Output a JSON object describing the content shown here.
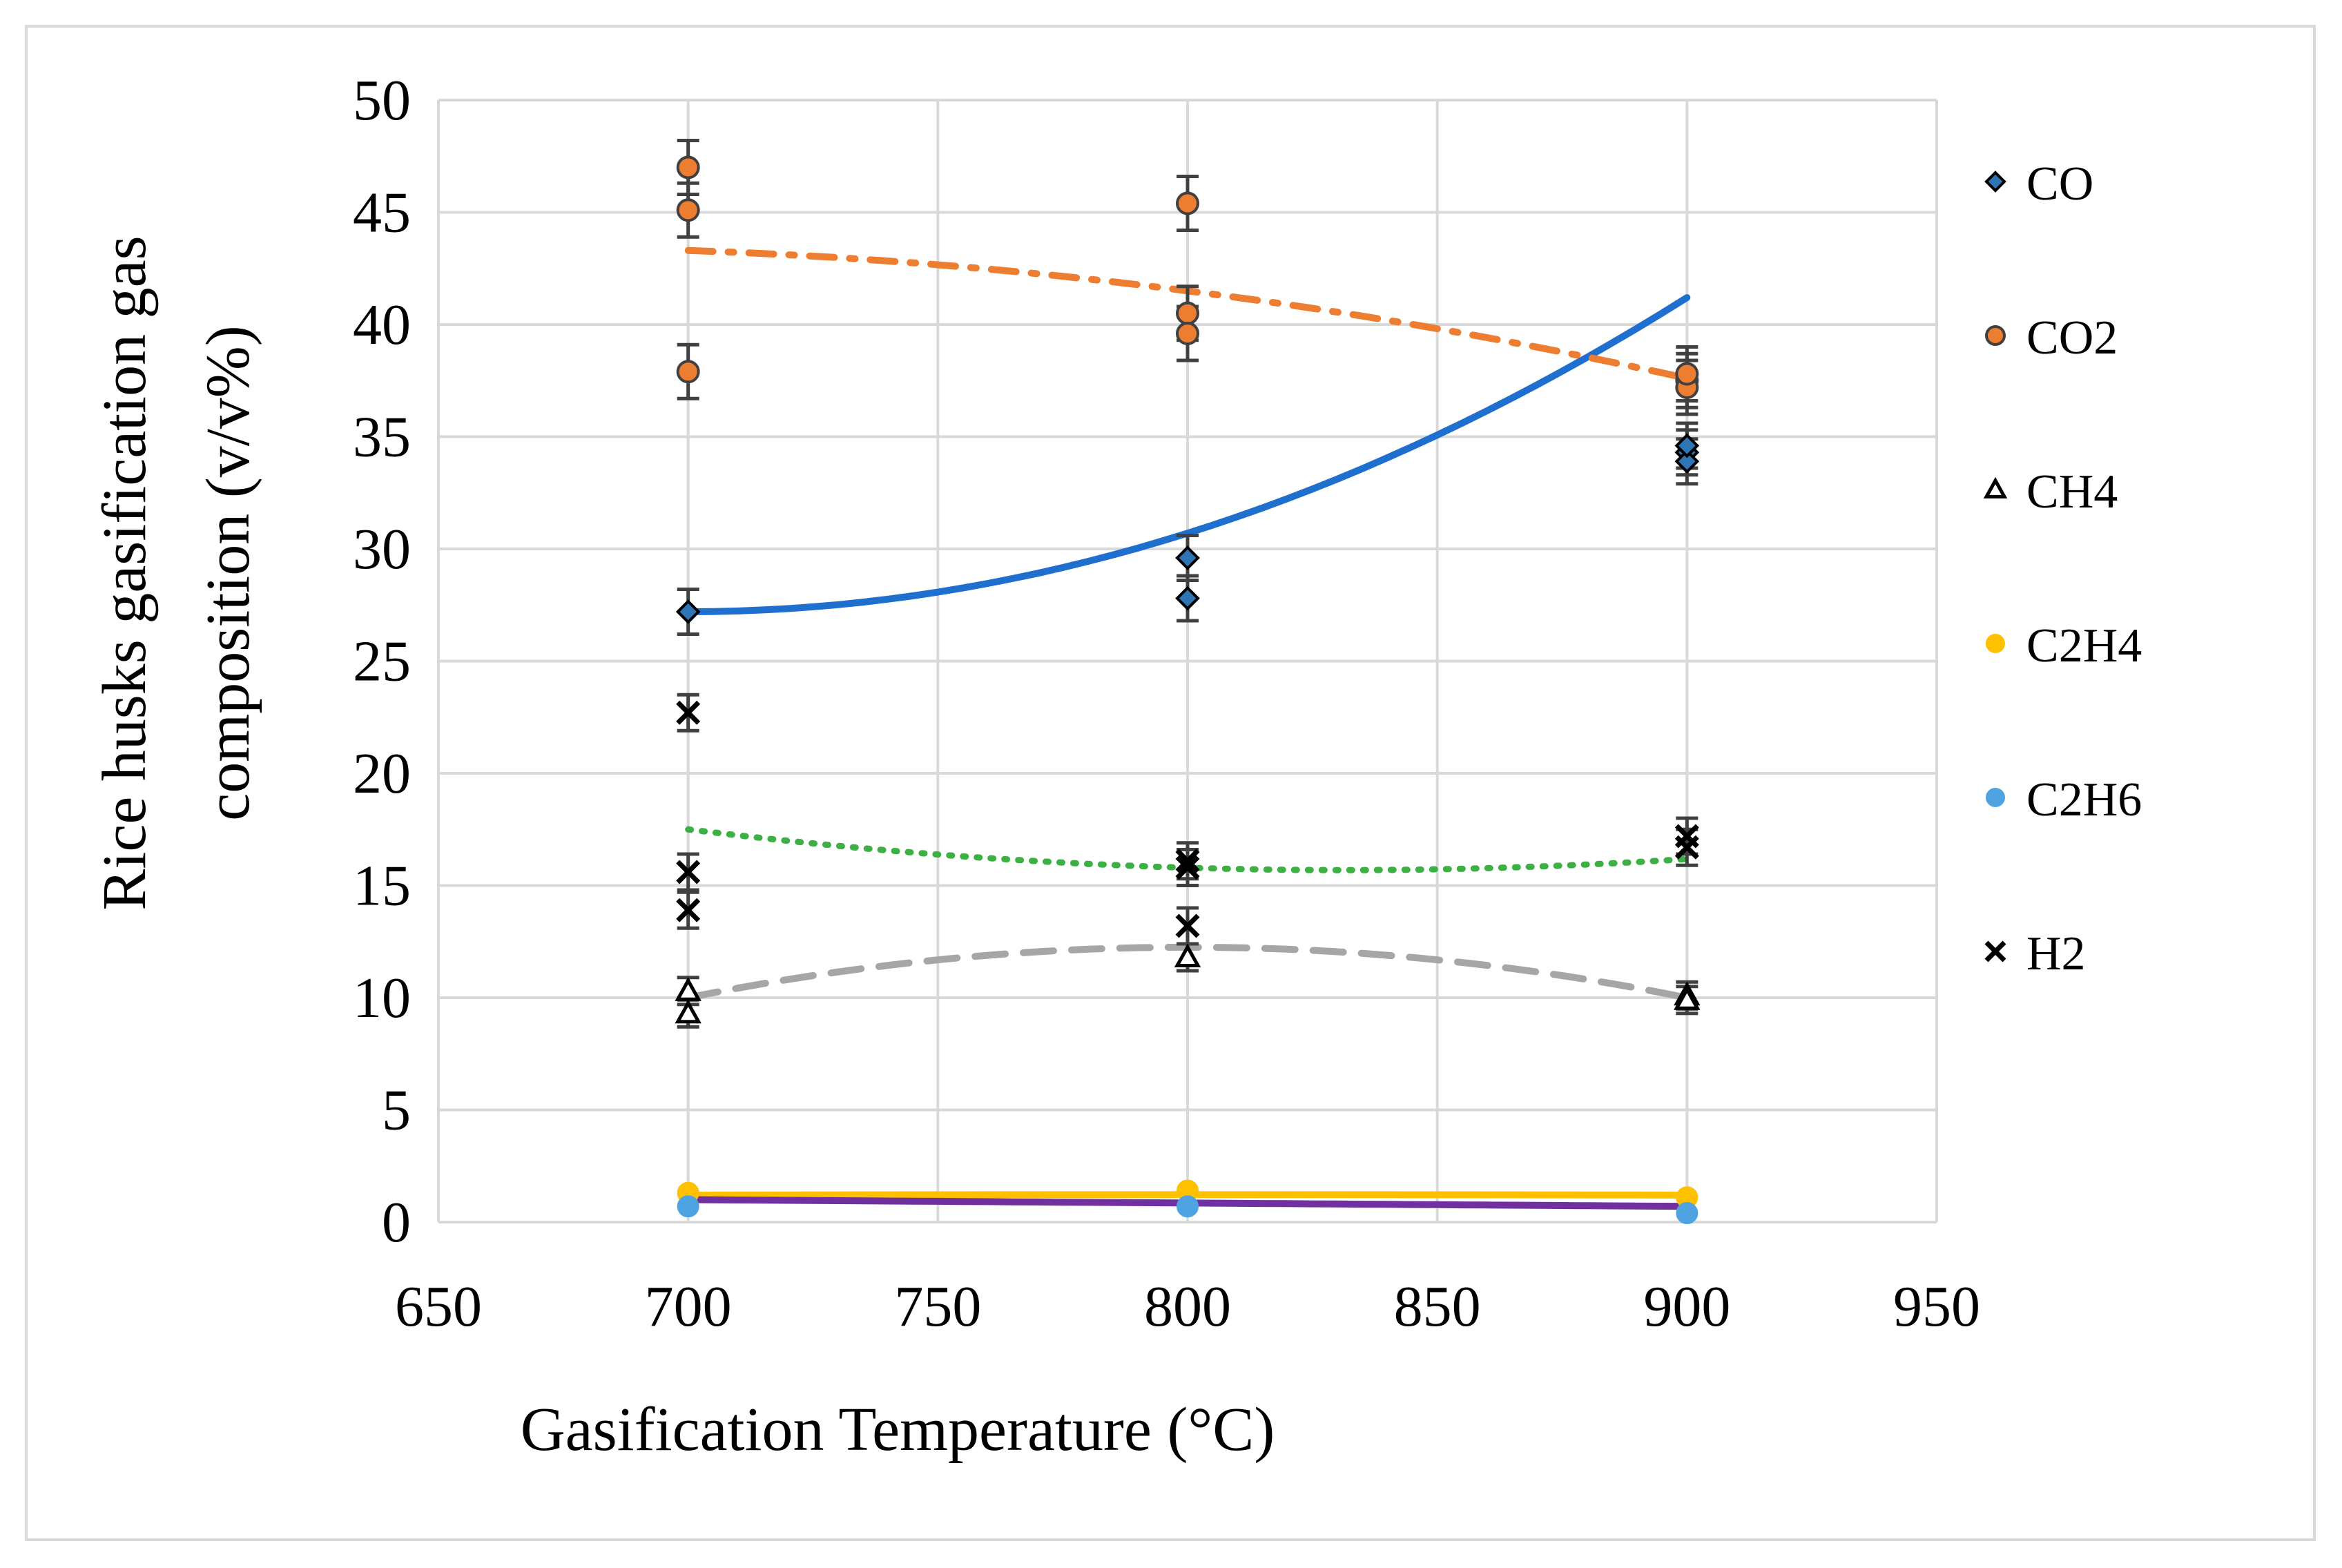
{
  "chart_data": {
    "type": "scatter",
    "title": "",
    "xlabel": "Gasification Temperature (°C)",
    "ylabel_line1": "Rice husks gasification gas",
    "ylabel_line2": "composition (v/v%)",
    "xlim": [
      650,
      950
    ],
    "ylim": [
      0,
      50
    ],
    "xticks": [
      650,
      700,
      750,
      800,
      850,
      900,
      950
    ],
    "yticks": [
      0,
      5,
      10,
      15,
      20,
      25,
      30,
      35,
      40,
      45,
      50
    ],
    "grid": true,
    "legend_position": "right",
    "series": [
      {
        "name": "CO",
        "marker": "diamond",
        "color": "#2e75b6",
        "points": [
          [
            700,
            27.2
          ],
          [
            800,
            29.6
          ],
          [
            800,
            27.8
          ],
          [
            900,
            34.3
          ],
          [
            900,
            33.9
          ],
          [
            900,
            34.6
          ]
        ],
        "error": 1.0,
        "trend": {
          "style": "solid",
          "color": "#1f6fce",
          "coeffs": [
            27.2,
            0.0,
            0.00035
          ]
        }
      },
      {
        "name": "CO2",
        "marker": "circle",
        "color": "#ed7d31",
        "points": [
          [
            700,
            47.0
          ],
          [
            700,
            45.1
          ],
          [
            700,
            37.9
          ],
          [
            800,
            45.4
          ],
          [
            800,
            40.5
          ],
          [
            800,
            39.6
          ],
          [
            900,
            37.5
          ],
          [
            900,
            37.2
          ],
          [
            900,
            37.8
          ]
        ],
        "error": 1.2,
        "trend": {
          "style": "dash-dot",
          "color": "#ed7d31",
          "coeffs": [
            43.3,
            -0.0075,
            -0.000105
          ]
        }
      },
      {
        "name": "CH4",
        "marker": "triangle",
        "color": "#7f7f7f",
        "points": [
          [
            700,
            10.3
          ],
          [
            700,
            9.3
          ],
          [
            800,
            11.8
          ],
          [
            900,
            10.1
          ],
          [
            900,
            9.9
          ]
        ],
        "error": 0.6,
        "trend": {
          "style": "dashed",
          "color": "#a6a6a6",
          "coeffs": [
            10.0,
            0.045,
            -0.000225
          ]
        }
      },
      {
        "name": "C2H4",
        "marker": "circle",
        "color": "#ffc000",
        "points": [
          [
            700,
            1.3
          ],
          [
            800,
            1.4
          ],
          [
            900,
            1.1
          ]
        ],
        "error": 0,
        "trend": {
          "style": "solid",
          "color": "#ffc000",
          "coeffs": [
            1.2,
            0.0005,
            -2.5e-06
          ]
        }
      },
      {
        "name": "C2H6",
        "marker": "circle",
        "color": "#4fa3e0",
        "points": [
          [
            700,
            0.7
          ],
          [
            800,
            0.7
          ],
          [
            900,
            0.4
          ]
        ],
        "error": 0,
        "trend": {
          "style": "solid",
          "color": "#7030a0",
          "coeffs": [
            1.0,
            -0.0015,
            0.0
          ]
        }
      },
      {
        "name": "H2",
        "marker": "x",
        "color": "#000000",
        "points": [
          [
            700,
            22.7
          ],
          [
            700,
            15.6
          ],
          [
            700,
            13.9
          ],
          [
            800,
            16.1
          ],
          [
            800,
            15.8
          ],
          [
            800,
            13.2
          ],
          [
            900,
            17.2
          ],
          [
            900,
            16.7
          ]
        ],
        "error": 0.8,
        "trend": {
          "style": "dotted",
          "color": "#3cb043",
          "coeffs": [
            17.5,
            -0.0276,
            0.000105
          ]
        }
      }
    ]
  }
}
